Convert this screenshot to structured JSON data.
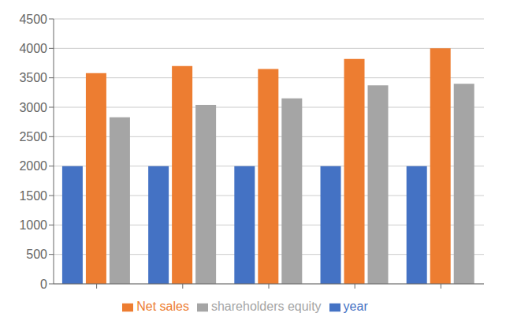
{
  "chart_data": {
    "type": "bar",
    "categories": [
      null,
      null,
      null,
      null,
      null
    ],
    "series": [
      {
        "name": "year",
        "color": "#4472C4",
        "values": [
          2000,
          2000,
          2000,
          2000,
          2000
        ]
      },
      {
        "name": "Net sales",
        "color": "#ED7D31",
        "values": [
          3580,
          3700,
          3650,
          3820,
          4000
        ]
      },
      {
        "name": "shareholders equity",
        "color": "#A5A5A5",
        "values": [
          2830,
          3040,
          3150,
          3370,
          3400
        ]
      }
    ],
    "ylim": [
      0,
      4500
    ],
    "yticks": [
      0,
      500,
      1000,
      1500,
      2000,
      2500,
      3000,
      3500,
      4000,
      4500
    ],
    "grid": true,
    "legend": "bottom"
  }
}
